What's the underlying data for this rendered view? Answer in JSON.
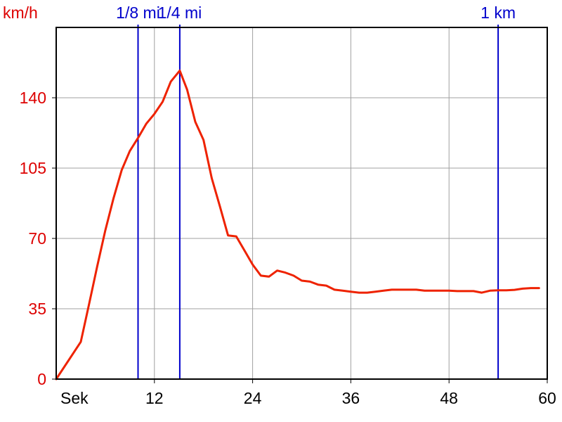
{
  "chart_data": {
    "type": "line",
    "y_unit_label": "km/h",
    "x_unit_label": "Sek",
    "xlim": [
      0,
      60
    ],
    "ylim": [
      0,
      175
    ],
    "x_ticks": [
      "12",
      "24",
      "36",
      "48",
      "60"
    ],
    "x_tick_values": [
      12,
      24,
      36,
      48,
      60
    ],
    "y_ticks": [
      "0",
      "35",
      "70",
      "105",
      "140"
    ],
    "y_tick_values": [
      0,
      35,
      70,
      105,
      140
    ],
    "grid": true,
    "markers": [
      {
        "label": "1/8 mi",
        "x": 10.0
      },
      {
        "label": "1/4 mi",
        "x": 15.1
      },
      {
        "label": "1 km",
        "x": 54.0
      }
    ],
    "series": [
      {
        "x": [
          0,
          3.0,
          4.0,
          5.0,
          6.0,
          7.0,
          8.0,
          9.0,
          10.0,
          11.0,
          12.0,
          13.0,
          14.0,
          15.1,
          16.0,
          17.0,
          18.0,
          19.0,
          20.0,
          21.0,
          22.0,
          23.0,
          24.0,
          25.0,
          26.0,
          27.0,
          28.0,
          29.0,
          30.0,
          31.0,
          32.0,
          33.0,
          34.0,
          35.0,
          36.0,
          37.0,
          38.0,
          39.0,
          40.0,
          41.0,
          42.0,
          43.0,
          44.0,
          45.0,
          46.0,
          47.0,
          48.0,
          49.0,
          50.0,
          51.0,
          52.0,
          53.0,
          54.0,
          55.0,
          56.0,
          57.0,
          58.0,
          59.0
        ],
        "y": [
          0,
          18.5,
          37.0,
          56.0,
          74.0,
          90.0,
          104.0,
          113.5,
          120.0,
          127.0,
          132.0,
          138.0,
          148.0,
          153.5,
          144.0,
          128.0,
          119.0,
          100.0,
          86.0,
          71.5,
          71.0,
          64.0,
          57.0,
          51.5,
          51.0,
          54.0,
          53.0,
          51.5,
          49.0,
          48.5,
          47.0,
          46.5,
          44.5,
          44.0,
          43.5,
          43.0,
          43.0,
          43.5,
          44.0,
          44.5,
          44.5,
          44.5,
          44.5,
          44.0,
          44.0,
          44.0,
          44.0,
          43.8,
          43.8,
          43.8,
          43.0,
          44.0,
          44.2,
          44.2,
          44.4,
          45.0,
          45.3,
          45.3
        ],
        "color": "#ee2200"
      }
    ],
    "colors": {
      "y_axis_text": "#dd0000",
      "marker": "#0000cc",
      "grid": "#a0a0a0",
      "axis": "#000000"
    }
  }
}
